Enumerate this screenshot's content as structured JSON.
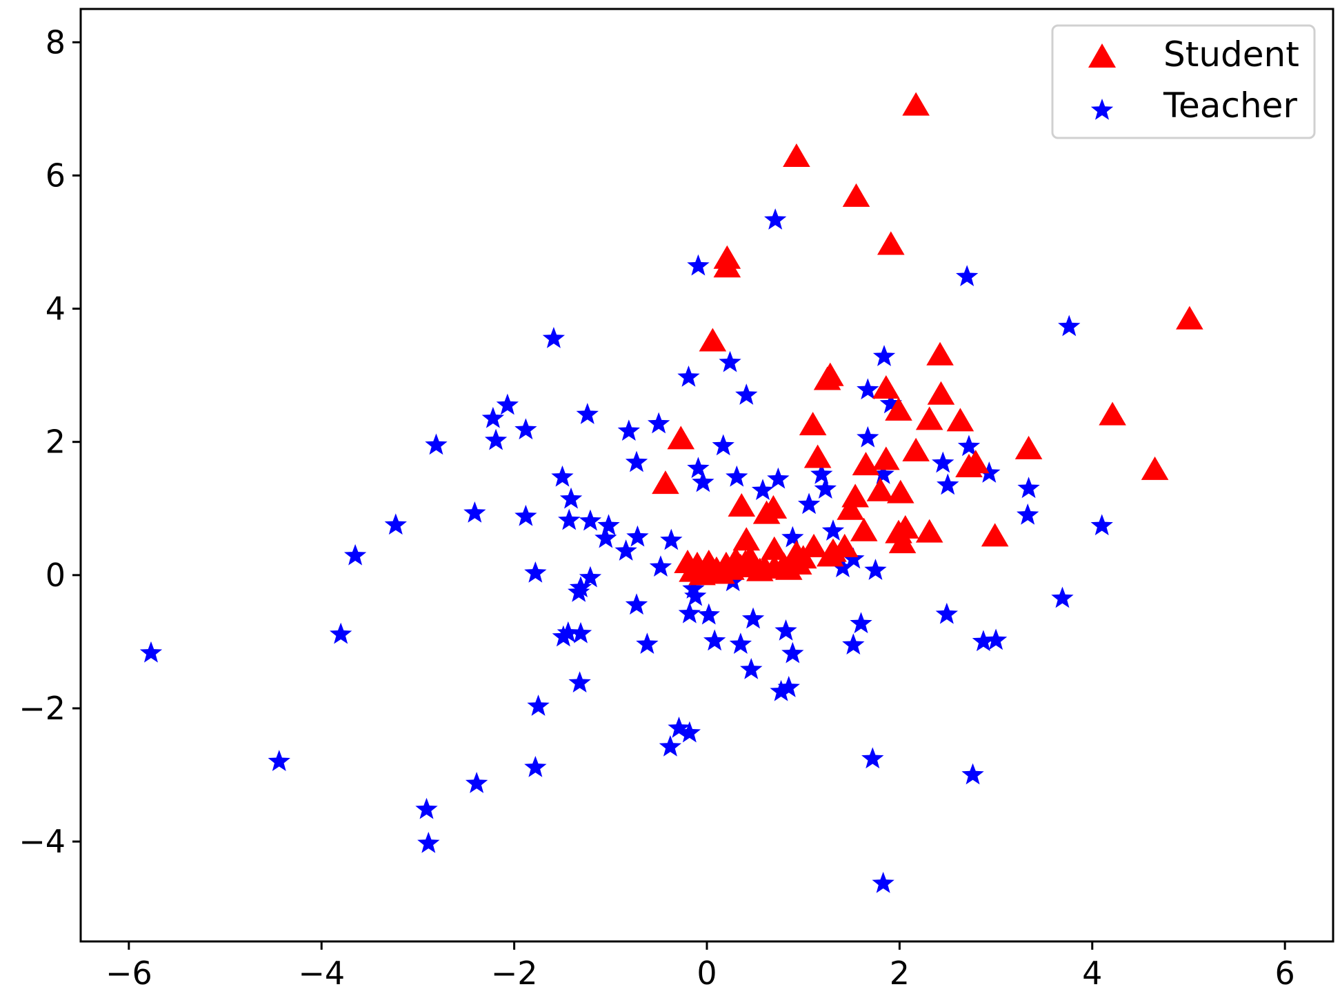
{
  "chart_data": {
    "type": "scatter",
    "title": "",
    "xlabel": "",
    "ylabel": "",
    "xlim": [
      -6.5,
      6.5
    ],
    "ylim": [
      -5.5,
      8.5
    ],
    "x_ticks": [
      -6,
      -4,
      -2,
      0,
      2,
      4,
      6
    ],
    "y_ticks": [
      -4,
      -2,
      0,
      2,
      4,
      6,
      8
    ],
    "x_tick_labels": [
      "−6",
      "−4",
      "−2",
      "0",
      "2",
      "4",
      "6"
    ],
    "y_tick_labels": [
      "−4",
      "−2",
      "0",
      "2",
      "4",
      "6",
      "8"
    ],
    "grid": false,
    "legend_position": "top-right",
    "series": [
      {
        "name": "Student",
        "marker": "triangle",
        "color": "#ff0000",
        "points": [
          [
            2.17,
            7.05
          ],
          [
            0.93,
            6.28
          ],
          [
            1.55,
            5.68
          ],
          [
            1.91,
            4.96
          ],
          [
            0.21,
            4.75
          ],
          [
            0.21,
            4.62
          ],
          [
            5.01,
            3.84
          ],
          [
            0.06,
            3.51
          ],
          [
            2.42,
            3.3
          ],
          [
            1.28,
            2.99
          ],
          [
            1.25,
            2.93
          ],
          [
            1.86,
            2.8
          ],
          [
            2.43,
            2.71
          ],
          [
            1.99,
            2.47
          ],
          [
            4.21,
            2.4
          ],
          [
            2.31,
            2.33
          ],
          [
            2.63,
            2.31
          ],
          [
            1.1,
            2.25
          ],
          [
            -0.27,
            2.04
          ],
          [
            3.34,
            1.89
          ],
          [
            2.17,
            1.86
          ],
          [
            1.15,
            1.76
          ],
          [
            1.65,
            1.65
          ],
          [
            1.86,
            1.73
          ],
          [
            4.65,
            1.58
          ],
          [
            2.72,
            1.62
          ],
          [
            2.79,
            1.68
          ],
          [
            -0.43,
            1.37
          ],
          [
            1.54,
            1.17
          ],
          [
            1.8,
            1.26
          ],
          [
            2.01,
            1.23
          ],
          [
            0.36,
            1.03
          ],
          [
            0.69,
            1.0
          ],
          [
            0.62,
            0.92
          ],
          [
            1.49,
            0.98
          ],
          [
            1.63,
            0.66
          ],
          [
            2.06,
            0.7
          ],
          [
            2.31,
            0.64
          ],
          [
            2.99,
            0.58
          ],
          [
            1.99,
            0.63
          ],
          [
            2.03,
            0.48
          ],
          [
            0.41,
            0.52
          ],
          [
            1.11,
            0.42
          ],
          [
            1.31,
            0.35
          ],
          [
            1.43,
            0.42
          ],
          [
            0.7,
            0.38
          ],
          [
            1.28,
            0.28
          ],
          [
            0.93,
            0.32
          ],
          [
            -0.2,
            0.18
          ],
          [
            -0.1,
            0.15
          ],
          [
            0.0,
            0.12
          ],
          [
            0.05,
            0.05
          ],
          [
            0.1,
            0.08
          ],
          [
            0.2,
            0.15
          ],
          [
            0.3,
            0.22
          ],
          [
            0.4,
            0.18
          ],
          [
            0.5,
            0.12
          ],
          [
            0.6,
            0.1
          ],
          [
            0.7,
            0.1
          ],
          [
            0.8,
            0.14
          ],
          [
            0.9,
            0.2
          ],
          [
            1.0,
            0.25
          ],
          [
            -0.15,
            0.05
          ],
          [
            0.15,
            0.02
          ],
          [
            0.25,
            0.08
          ],
          [
            0.35,
            0.12
          ],
          [
            0.55,
            0.06
          ],
          [
            0.85,
            0.08
          ],
          [
            0.95,
            0.16
          ],
          [
            -0.05,
            0.0
          ],
          [
            0.02,
            0.18
          ],
          [
            0.45,
            0.25
          ]
        ]
      },
      {
        "name": "Teacher",
        "marker": "star",
        "color": "#0000ff",
        "points": [
          [
            0.71,
            5.33
          ],
          [
            -0.09,
            4.64
          ],
          [
            2.7,
            4.48
          ],
          [
            3.76,
            3.73
          ],
          [
            -1.59,
            3.55
          ],
          [
            1.84,
            3.28
          ],
          [
            0.24,
            3.19
          ],
          [
            -0.19,
            2.97
          ],
          [
            1.67,
            2.78
          ],
          [
            0.41,
            2.7
          ],
          [
            1.91,
            2.57
          ],
          [
            -2.07,
            2.55
          ],
          [
            -1.24,
            2.41
          ],
          [
            -2.22,
            2.35
          ],
          [
            -0.5,
            2.27
          ],
          [
            -0.81,
            2.16
          ],
          [
            -1.88,
            2.18
          ],
          [
            -2.19,
            2.02
          ],
          [
            -2.81,
            1.95
          ],
          [
            0.17,
            1.94
          ],
          [
            2.72,
            1.93
          ],
          [
            1.67,
            2.06
          ],
          [
            -0.73,
            1.69
          ],
          [
            -0.09,
            1.6
          ],
          [
            2.45,
            1.68
          ],
          [
            2.93,
            1.53
          ],
          [
            1.83,
            1.51
          ],
          [
            -1.5,
            1.47
          ],
          [
            1.19,
            1.51
          ],
          [
            0.31,
            1.47
          ],
          [
            0.74,
            1.44
          ],
          [
            -0.04,
            1.39
          ],
          [
            2.5,
            1.35
          ],
          [
            1.23,
            1.29
          ],
          [
            0.58,
            1.27
          ],
          [
            3.34,
            1.3
          ],
          [
            -1.41,
            1.14
          ],
          [
            1.06,
            1.06
          ],
          [
            -2.41,
            0.93
          ],
          [
            -1.88,
            0.88
          ],
          [
            3.33,
            0.9
          ],
          [
            -1.43,
            0.82
          ],
          [
            -3.23,
            0.75
          ],
          [
            -1.21,
            0.81
          ],
          [
            -1.02,
            0.74
          ],
          [
            4.1,
            0.74
          ],
          [
            -1.05,
            0.55
          ],
          [
            1.31,
            0.66
          ],
          [
            -0.72,
            0.57
          ],
          [
            -0.37,
            0.52
          ],
          [
            0.89,
            0.56
          ],
          [
            -3.65,
            0.29
          ],
          [
            -0.84,
            0.36
          ],
          [
            1.52,
            0.24
          ],
          [
            -0.48,
            0.12
          ],
          [
            1.75,
            0.07
          ],
          [
            -1.78,
            0.03
          ],
          [
            1.41,
            0.11
          ],
          [
            -1.21,
            -0.04
          ],
          [
            0.27,
            -0.1
          ],
          [
            -1.31,
            -0.19
          ],
          [
            -1.33,
            -0.26
          ],
          [
            -0.14,
            -0.21
          ],
          [
            -0.12,
            -0.32
          ],
          [
            3.69,
            -0.35
          ],
          [
            -0.73,
            -0.45
          ],
          [
            -0.18,
            -0.58
          ],
          [
            0.02,
            -0.6
          ],
          [
            2.49,
            -0.59
          ],
          [
            0.48,
            -0.66
          ],
          [
            1.6,
            -0.73
          ],
          [
            -3.8,
            -0.89
          ],
          [
            -1.49,
            -0.93
          ],
          [
            -1.44,
            -0.87
          ],
          [
            -1.31,
            -0.88
          ],
          [
            0.82,
            -0.84
          ],
          [
            1.52,
            -1.05
          ],
          [
            3.0,
            -0.98
          ],
          [
            2.87,
            -1.0
          ],
          [
            0.08,
            -0.99
          ],
          [
            0.35,
            -1.04
          ],
          [
            -0.62,
            -1.04
          ],
          [
            0.89,
            -1.18
          ],
          [
            -5.77,
            -1.17
          ],
          [
            0.46,
            -1.42
          ],
          [
            -1.32,
            -1.62
          ],
          [
            0.85,
            -1.69
          ],
          [
            0.77,
            -1.75
          ],
          [
            -1.75,
            -1.97
          ],
          [
            -0.29,
            -2.3
          ],
          [
            -0.18,
            -2.37
          ],
          [
            -0.38,
            -2.58
          ],
          [
            1.72,
            -2.76
          ],
          [
            -4.44,
            -2.8
          ],
          [
            -1.78,
            -2.89
          ],
          [
            2.76,
            -3.0
          ],
          [
            -2.39,
            -3.13
          ],
          [
            -2.91,
            -3.52
          ],
          [
            -2.89,
            -4.03
          ],
          [
            1.83,
            -4.63
          ]
        ]
      }
    ]
  }
}
